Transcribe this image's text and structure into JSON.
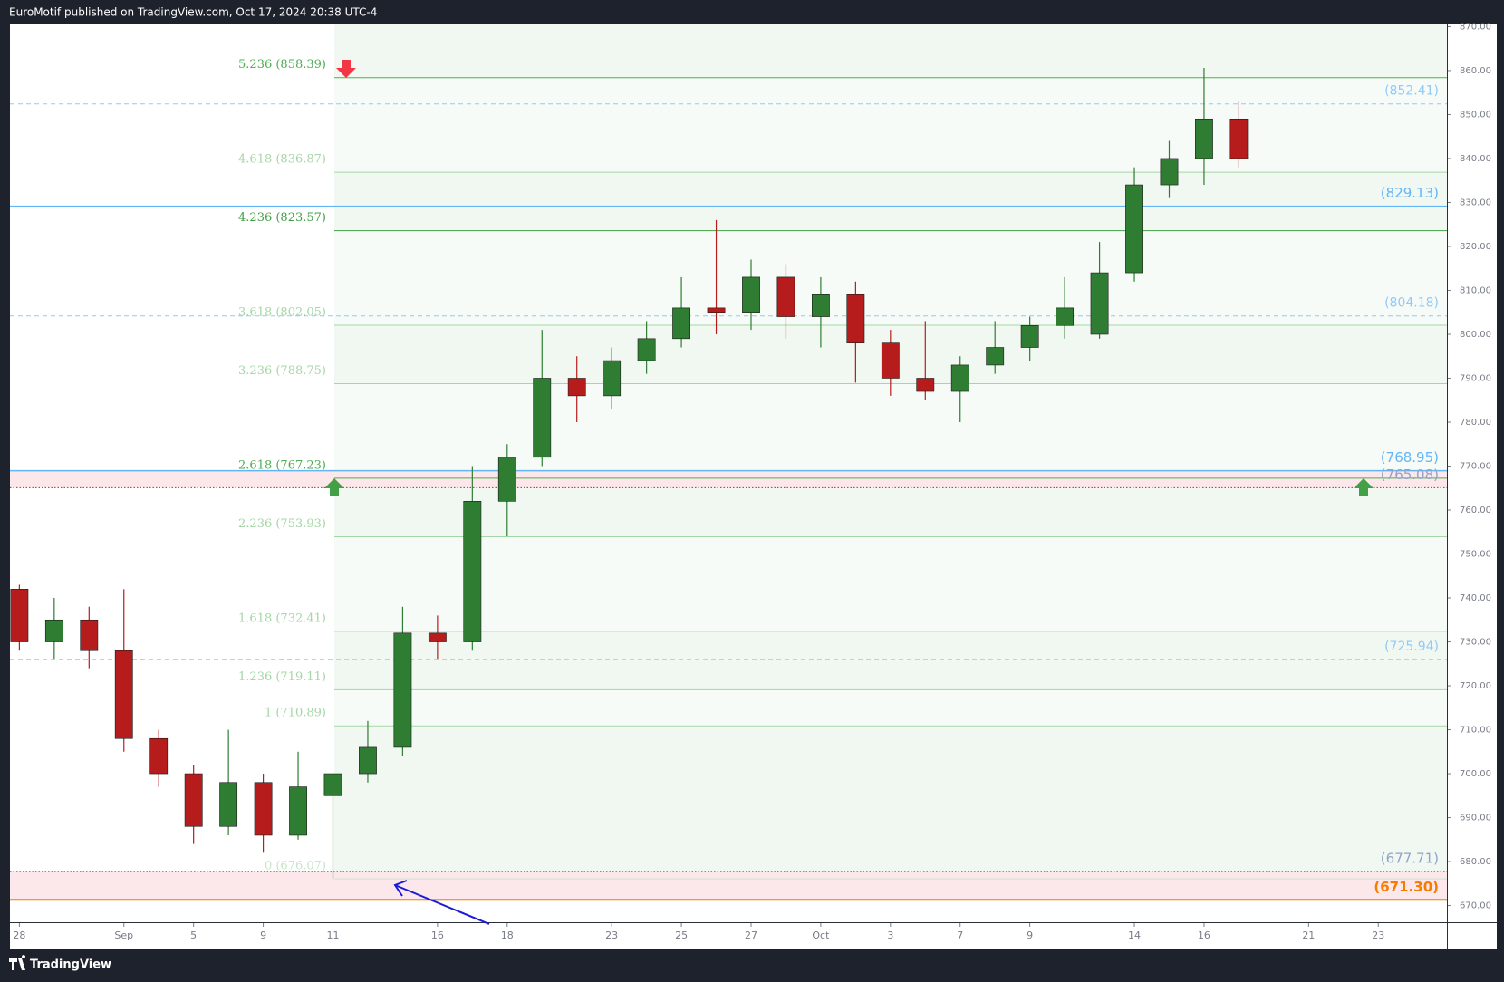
{
  "chart_data": {
    "type": "candlestick",
    "title": "EuroMotif published on TradingView.com, Oct 17, 2024 20:38 UTC-4",
    "brand": "TradingView",
    "up_color": "#2e7d32",
    "down_color": "#b71c1c",
    "x": [
      0,
      1,
      2,
      3,
      4,
      5,
      6,
      7,
      8,
      9,
      10,
      11,
      12,
      13,
      14,
      15,
      16,
      17,
      18,
      19,
      20,
      21,
      22,
      23,
      24,
      25,
      26,
      27,
      28,
      29,
      30,
      31,
      32,
      33,
      34,
      35
    ],
    "open": [
      742,
      730,
      735,
      728,
      708,
      700,
      688,
      698,
      686,
      695,
      700,
      706,
      732,
      730,
      762,
      772,
      790,
      786,
      794,
      799,
      806,
      805,
      813,
      804,
      809,
      798,
      790,
      787,
      793,
      797,
      802,
      800,
      814,
      834,
      840,
      849
    ],
    "high": [
      743,
      740,
      738,
      742,
      710,
      702,
      710,
      700,
      705,
      700,
      712,
      738,
      736,
      770,
      775,
      801,
      795,
      797,
      803,
      813,
      826,
      817,
      816,
      813,
      812,
      801,
      803,
      795,
      803,
      804,
      813,
      821,
      838,
      844,
      860.6,
      853
    ],
    "low": [
      728,
      726,
      724,
      705,
      697,
      684,
      686,
      682,
      685,
      676.07,
      698,
      704,
      726,
      728,
      754,
      770,
      780,
      783,
      791,
      797,
      800,
      801,
      799,
      797,
      789,
      786,
      785,
      780,
      791,
      794,
      799,
      799,
      812,
      831,
      834,
      838
    ],
    "close": [
      730,
      735,
      728,
      708,
      700,
      688,
      698,
      686,
      697,
      700,
      706,
      732,
      730,
      762,
      772,
      790,
      786,
      794,
      799,
      806,
      805,
      813,
      804,
      809,
      798,
      790,
      787,
      793,
      797,
      802,
      806,
      814,
      834,
      840,
      849,
      840
    ],
    "xlim": [
      -0.27,
      40.97
    ],
    "xticks": [
      {
        "value": 0,
        "label": "28"
      },
      {
        "value": 3,
        "label": "Sep"
      },
      {
        "value": 5,
        "label": "5"
      },
      {
        "value": 7,
        "label": "9"
      },
      {
        "value": 9,
        "label": "11"
      },
      {
        "value": 12,
        "label": "16"
      },
      {
        "value": 14,
        "label": "18"
      },
      {
        "value": 17,
        "label": "23"
      },
      {
        "value": 19,
        "label": "25"
      },
      {
        "value": 21,
        "label": "27"
      },
      {
        "value": 23,
        "label": "Oct"
      },
      {
        "value": 25,
        "label": "3"
      },
      {
        "value": 27,
        "label": "7"
      },
      {
        "value": 29,
        "label": "9"
      },
      {
        "value": 32,
        "label": "14"
      },
      {
        "value": 34,
        "label": "16"
      },
      {
        "value": 37,
        "label": "21"
      },
      {
        "value": 39,
        "label": "23"
      }
    ],
    "ylim": [
      666.2,
      870.5
    ],
    "yticks": [
      {
        "value": 670,
        "label": "670.00"
      },
      {
        "value": 680,
        "label": "680.00"
      },
      {
        "value": 690,
        "label": "690.00"
      },
      {
        "value": 700,
        "label": "700.00"
      },
      {
        "value": 710,
        "label": "710.00"
      },
      {
        "value": 720,
        "label": "720.00"
      },
      {
        "value": 730,
        "label": "730.00"
      },
      {
        "value": 740,
        "label": "740.00"
      },
      {
        "value": 750,
        "label": "750.00"
      },
      {
        "value": 760,
        "label": "760.00"
      },
      {
        "value": 770,
        "label": "770.00"
      },
      {
        "value": 780,
        "label": "780.00"
      },
      {
        "value": 790,
        "label": "790.00"
      },
      {
        "value": 800,
        "label": "800.00"
      },
      {
        "value": 810,
        "label": "810.00"
      },
      {
        "value": 820,
        "label": "820.00"
      },
      {
        "value": 830,
        "label": "830.00"
      },
      {
        "value": 840,
        "label": "840.00"
      },
      {
        "value": 850,
        "label": "850.00"
      },
      {
        "value": 860,
        "label": "860.00"
      },
      {
        "value": 870,
        "label": "870.00"
      }
    ],
    "fib_levels": [
      {
        "label": "5.236 (858.39)",
        "value": 858.39,
        "color": "#4caf50"
      },
      {
        "label": "4.618 (836.87)",
        "value": 836.87,
        "color": "#a5d6a7"
      },
      {
        "label": "4.236 (823.57)",
        "value": 823.57,
        "color": "#43a047"
      },
      {
        "label": "3.618 (802.05)",
        "value": 802.05,
        "color": "#a5d6a7"
      },
      {
        "label": "3.236 (788.75)",
        "value": 788.75,
        "color": "#a5d6a7"
      },
      {
        "label": "2.618 (767.23)",
        "value": 767.23,
        "color": "#4caf50"
      },
      {
        "label": "2.236 (753.93)",
        "value": 753.93,
        "color": "#a5d6a7"
      },
      {
        "label": "1.618 (732.41)",
        "value": 732.41,
        "color": "#a5d6a7"
      },
      {
        "label": "1.236 (719.11)",
        "value": 719.11,
        "color": "#a5d6a7"
      },
      {
        "label": "1 (710.89)",
        "value": 710.89,
        "color": "#a5d6a7"
      },
      {
        "label": "0 (676.07)",
        "value": 676.07,
        "color": "#c8e6c9"
      }
    ],
    "levels": [
      {
        "label": "(852.41)",
        "value": 852.41,
        "style": "dashed",
        "color": "#90caf9"
      },
      {
        "label": "(829.13)",
        "value": 829.13,
        "style": "solid",
        "color": "#64b5f6"
      },
      {
        "label": "(804.18)",
        "value": 804.18,
        "style": "dashed",
        "color": "#90caf9"
      },
      {
        "label": "(768.95)",
        "value": 768.95,
        "style": "solid",
        "color": "#64b5f6"
      },
      {
        "label": "(765.08)",
        "value": 765.08,
        "style": "dotted",
        "color": "#c62828"
      },
      {
        "label": "(725.94)",
        "value": 725.94,
        "style": "dashed",
        "color": "#90caf9"
      },
      {
        "label": "(677.71)",
        "value": 677.71,
        "style": "dotted",
        "color": "#c62828"
      },
      {
        "label": "(671.30)",
        "value": 671.3,
        "style": "thick",
        "color": "#f57c00"
      }
    ]
  }
}
